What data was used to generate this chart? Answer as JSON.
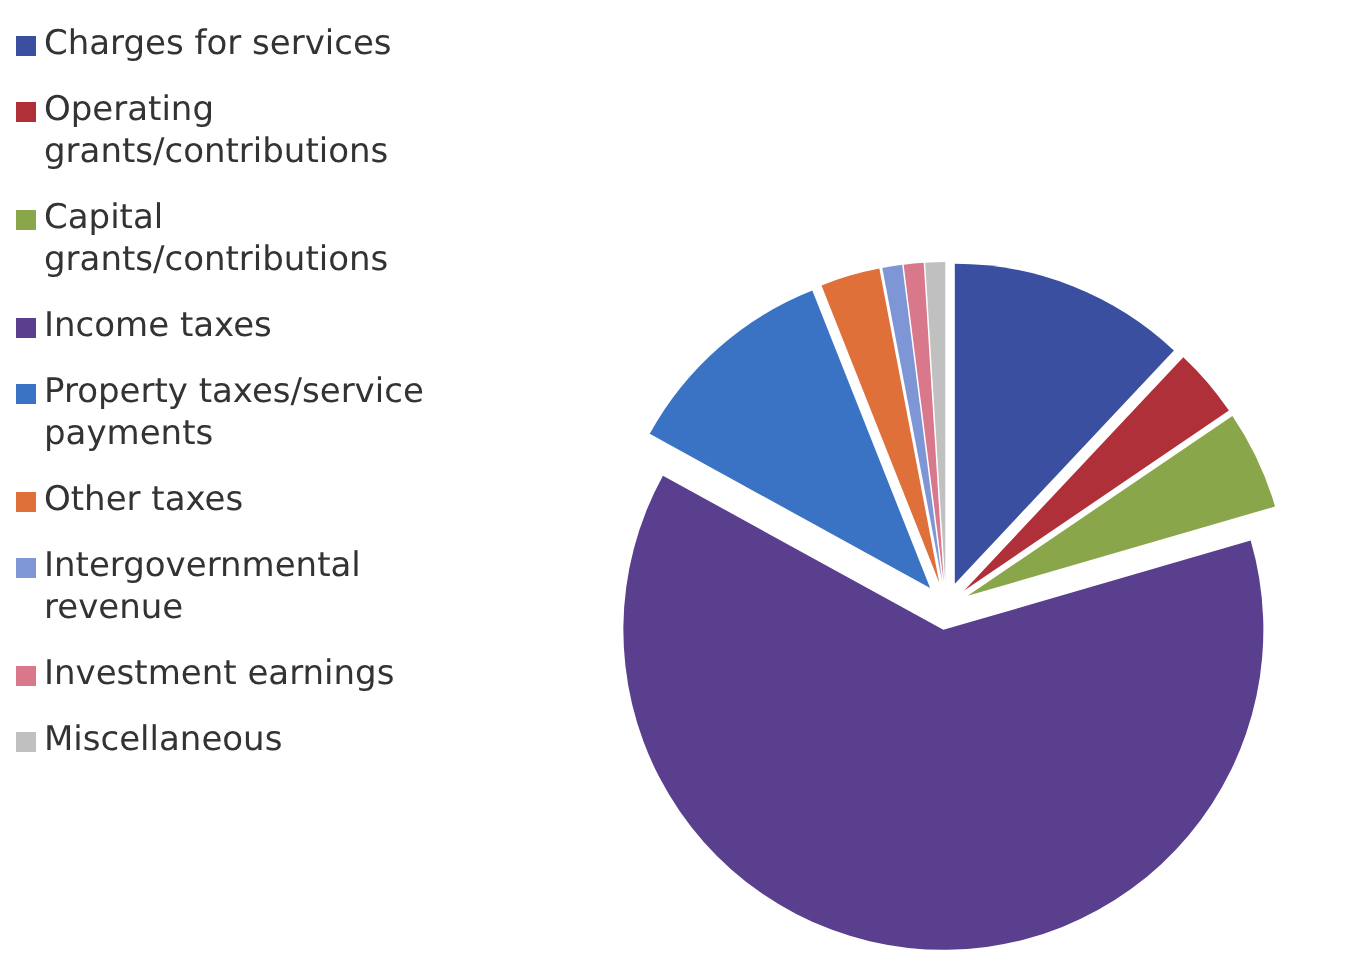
{
  "chart_data": {
    "type": "pie",
    "categories": [
      "Charges for services",
      "Operating grants/contributions",
      "Capital grants/contributions",
      "Income taxes",
      "Property taxes/service payments",
      "Other taxes",
      "Intergovernmental revenue",
      "Investment earnings",
      "Miscellaneous"
    ],
    "values": [
      12,
      3.5,
      5,
      62.5,
      11,
      3,
      1,
      1,
      1
    ],
    "colors": [
      "#3a4fa0",
      "#b0303a",
      "#8aa64a",
      "#5b3f8f",
      "#3a73c4",
      "#e0703a",
      "#7f96d6",
      "#d9788a",
      "#c0c0c0"
    ],
    "legend": "left"
  }
}
